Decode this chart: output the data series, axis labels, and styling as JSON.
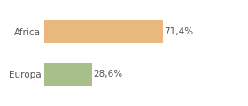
{
  "categories": [
    "Africa",
    "Europa"
  ],
  "values": [
    71.4,
    28.6
  ],
  "bar_colors": [
    "#e8b87d",
    "#a8bf8a"
  ],
  "labels": [
    "71,4%",
    "28,6%"
  ],
  "background_color": "#ffffff",
  "xlim": [
    0,
    105
  ],
  "bar_height": 0.55,
  "label_fontsize": 7.5,
  "tick_fontsize": 7.5,
  "label_color": "#555555",
  "tick_color": "#555555",
  "grid_color": "#dddddd"
}
